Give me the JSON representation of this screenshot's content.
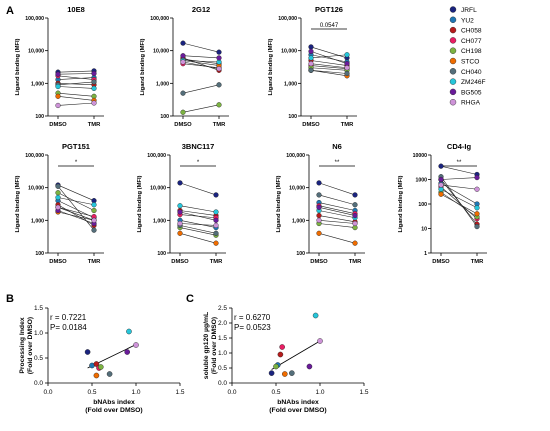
{
  "figure": {
    "panel_labels": [
      "A",
      "B",
      "C"
    ],
    "legend": [
      {
        "name": "JRFL",
        "color": "#1a237e"
      },
      {
        "name": "YU2",
        "color": "#1f77b4"
      },
      {
        "name": "CH058",
        "color": "#b71c1c"
      },
      {
        "name": "CH077",
        "color": "#e91e63"
      },
      {
        "name": "CH198",
        "color": "#7cb342"
      },
      {
        "name": "STCO",
        "color": "#ef6c00"
      },
      {
        "name": "CH040",
        "color": "#546e7a"
      },
      {
        "name": "ZM246F",
        "color": "#26c6da"
      },
      {
        "name": "BG505",
        "color": "#6a1b9a"
      },
      {
        "name": "RHGA",
        "color": "#ce93d8"
      }
    ]
  },
  "chart_data": [
    {
      "type": "line",
      "panel": "A",
      "title": "10E8",
      "ylabel": "Ligand binding (MFI)",
      "categories": [
        "DMSO",
        "TMR"
      ],
      "yscale": "log",
      "ylim": [
        100,
        100000
      ],
      "yticks": [
        "100",
        "1,000",
        "10,000",
        "100,000"
      ],
      "significance": "",
      "series": [
        {
          "name": "JRFL",
          "values": [
            2200,
            2400
          ]
        },
        {
          "name": "YU2",
          "values": [
            1300,
            1500
          ]
        },
        {
          "name": "CH058",
          "values": [
            1000,
            900
          ]
        },
        {
          "name": "CH077",
          "values": [
            1700,
            1300
          ]
        },
        {
          "name": "CH198",
          "values": [
            500,
            400
          ]
        },
        {
          "name": "STCO",
          "values": [
            400,
            300
          ]
        },
        {
          "name": "CH040",
          "values": [
            900,
            1100
          ]
        },
        {
          "name": "ZM246F",
          "values": [
            800,
            700
          ]
        },
        {
          "name": "BG505",
          "values": [
            1900,
            2000
          ]
        },
        {
          "name": "RHGA",
          "values": [
            210,
            250
          ]
        }
      ]
    },
    {
      "type": "line",
      "panel": "A",
      "title": "2G12",
      "ylabel": "Ligand binding (MFI)",
      "categories": [
        "DMSO",
        "TMR"
      ],
      "yscale": "log",
      "ylim": [
        100,
        100000
      ],
      "yticks": [
        "100",
        "1,000",
        "10,000",
        "100,000"
      ],
      "significance": "",
      "series": [
        {
          "name": "JRFL",
          "values": [
            17000,
            9000
          ]
        },
        {
          "name": "YU2",
          "values": [
            5500,
            4000
          ]
        },
        {
          "name": "CH058",
          "values": [
            6000,
            2500
          ]
        },
        {
          "name": "CH077",
          "values": [
            4000,
            3000
          ]
        },
        {
          "name": "CH198",
          "values": [
            130,
            220
          ]
        },
        {
          "name": "STCO",
          "values": [
            5000,
            3500
          ]
        },
        {
          "name": "CH040",
          "values": [
            500,
            900
          ]
        },
        {
          "name": "ZM246F",
          "values": [
            5000,
            4500
          ]
        },
        {
          "name": "BG505",
          "values": [
            7000,
            6000
          ]
        },
        {
          "name": "RHGA",
          "values": [
            4500,
            2800
          ]
        }
      ]
    },
    {
      "type": "line",
      "panel": "A",
      "title": "PGT126",
      "ylabel": "Ligand binding (MFI)",
      "categories": [
        "DMSO",
        "TMR"
      ],
      "yscale": "log",
      "ylim": [
        100,
        100000
      ],
      "yticks": [
        "100",
        "1,000",
        "10,000",
        "100,000"
      ],
      "significance": "0.0547",
      "series": [
        {
          "name": "JRFL",
          "values": [
            13000,
            6000
          ]
        },
        {
          "name": "YU2",
          "values": [
            7500,
            4500
          ]
        },
        {
          "name": "CH058",
          "values": [
            5000,
            3500
          ]
        },
        {
          "name": "CH077",
          "values": [
            3500,
            2800
          ]
        },
        {
          "name": "CH198",
          "values": [
            3000,
            2500
          ]
        },
        {
          "name": "STCO",
          "values": [
            2500,
            1700
          ]
        },
        {
          "name": "CH040",
          "values": [
            2500,
            2000
          ]
        },
        {
          "name": "ZM246F",
          "values": [
            6000,
            7500
          ]
        },
        {
          "name": "BG505",
          "values": [
            9500,
            4000
          ]
        },
        {
          "name": "RHGA",
          "values": [
            4000,
            3000
          ]
        }
      ]
    },
    {
      "type": "line",
      "panel": "A",
      "title": "PGT151",
      "ylabel": "Ligand binding (MFI)",
      "categories": [
        "DMSO",
        "TMR"
      ],
      "yscale": "log",
      "ylim": [
        100,
        100000
      ],
      "yticks": [
        "100",
        "1,000",
        "10,000",
        "100,000"
      ],
      "significance": "*",
      "series": [
        {
          "name": "JRFL",
          "values": [
            12000,
            4000
          ]
        },
        {
          "name": "YU2",
          "values": [
            4000,
            1200
          ]
        },
        {
          "name": "CH058",
          "values": [
            3000,
            700
          ]
        },
        {
          "name": "CH077",
          "values": [
            2500,
            1300
          ]
        },
        {
          "name": "CH198",
          "values": [
            7000,
            2000
          ]
        },
        {
          "name": "STCO",
          "values": [
            1800,
            1000
          ]
        },
        {
          "name": "CH040",
          "values": [
            11000,
            500
          ]
        },
        {
          "name": "ZM246F",
          "values": [
            5000,
            3000
          ]
        },
        {
          "name": "BG505",
          "values": [
            2000,
            800
          ]
        },
        {
          "name": "RHGA",
          "values": [
            2500,
            1000
          ]
        }
      ]
    },
    {
      "type": "line",
      "panel": "A",
      "title": "3BNC117",
      "ylabel": "Ligand binding (MFI)",
      "categories": [
        "DMSO",
        "TMR"
      ],
      "yscale": "log",
      "ylim": [
        100,
        100000
      ],
      "yticks": [
        "100",
        "1,000",
        "10,000",
        "100,000"
      ],
      "significance": "*",
      "series": [
        {
          "name": "JRFL",
          "values": [
            14000,
            6000
          ]
        },
        {
          "name": "YU2",
          "values": [
            1000,
            600
          ]
        },
        {
          "name": "CH058",
          "values": [
            2000,
            1400
          ]
        },
        {
          "name": "CH077",
          "values": [
            1500,
            1200
          ]
        },
        {
          "name": "CH198",
          "values": [
            600,
            350
          ]
        },
        {
          "name": "STCO",
          "values": [
            400,
            200
          ]
        },
        {
          "name": "CH040",
          "values": [
            700,
            400
          ]
        },
        {
          "name": "ZM246F",
          "values": [
            2800,
            1800
          ]
        },
        {
          "name": "BG505",
          "values": [
            1800,
            1000
          ]
        },
        {
          "name": "RHGA",
          "values": [
            800,
            700
          ]
        }
      ]
    },
    {
      "type": "line",
      "panel": "A",
      "title": "N6",
      "ylabel": "Ligand binding (MFI)",
      "categories": [
        "DMSO",
        "TMR"
      ],
      "yscale": "log",
      "ylim": [
        100,
        100000
      ],
      "yticks": [
        "100",
        "1,000",
        "10,000",
        "100,000"
      ],
      "significance": "**",
      "series": [
        {
          "name": "JRFL",
          "values": [
            14000,
            6000
          ]
        },
        {
          "name": "YU2",
          "values": [
            3500,
            2000
          ]
        },
        {
          "name": "CH058",
          "values": [
            1400,
            900
          ]
        },
        {
          "name": "CH077",
          "values": [
            2800,
            1600
          ]
        },
        {
          "name": "CH198",
          "values": [
            800,
            600
          ]
        },
        {
          "name": "STCO",
          "values": [
            400,
            200
          ]
        },
        {
          "name": "CH040",
          "values": [
            6000,
            3000
          ]
        },
        {
          "name": "ZM246F",
          "values": [
            2000,
            1200
          ]
        },
        {
          "name": "BG505",
          "values": [
            2500,
            1400
          ]
        },
        {
          "name": "RHGA",
          "values": [
            1000,
            800
          ]
        }
      ]
    },
    {
      "type": "line",
      "panel": "A",
      "title": "CD4-Ig",
      "ylabel": "Ligand binding (MFI)",
      "categories": [
        "DMSO",
        "TMR"
      ],
      "yscale": "log",
      "ylim": [
        1,
        10000
      ],
      "yticks": [
        "1",
        "10",
        "100",
        "1000",
        "10000"
      ],
      "significance": "**",
      "series": [
        {
          "name": "JRFL",
          "values": [
            3500,
            1600
          ]
        },
        {
          "name": "YU2",
          "values": [
            700,
            100
          ]
        },
        {
          "name": "CH058",
          "values": [
            1000,
            15
          ]
        },
        {
          "name": "CH077",
          "values": [
            500,
            25
          ]
        },
        {
          "name": "CH198",
          "values": [
            300,
            30
          ]
        },
        {
          "name": "STCO",
          "values": [
            250,
            40
          ]
        },
        {
          "name": "CH040",
          "values": [
            1300,
            12
          ]
        },
        {
          "name": "ZM246F",
          "values": [
            400,
            70
          ]
        },
        {
          "name": "BG505",
          "values": [
            1000,
            1200
          ]
        },
        {
          "name": "RHGA",
          "values": [
            600,
            400
          ]
        }
      ]
    },
    {
      "type": "scatter",
      "panel": "B",
      "xlabel": "bNAbs index\n(Fold over DMSO)",
      "ylabel": "Processing Index\n(Fold over DMSO)",
      "xlim": [
        0,
        1.5
      ],
      "ylim": [
        0,
        1.5
      ],
      "xticks": [
        "0.0",
        "0.5",
        "1.0",
        "1.5"
      ],
      "yticks": [
        "0.0",
        "0.5",
        "1.0",
        "1.5"
      ],
      "stats": {
        "r": "r = 0.7221",
        "p": "P= 0.0184"
      },
      "fit_line": {
        "x": [
          0.45,
          1.0
        ],
        "y": [
          0.3,
          0.77
        ]
      },
      "points": [
        {
          "name": "JRFL",
          "x": 0.45,
          "y": 0.62
        },
        {
          "name": "YU2",
          "x": 0.5,
          "y": 0.35
        },
        {
          "name": "CH058",
          "x": 0.55,
          "y": 0.38
        },
        {
          "name": "CH077",
          "x": 0.58,
          "y": 0.3
        },
        {
          "name": "CH198",
          "x": 0.6,
          "y": 0.32
        },
        {
          "name": "STCO",
          "x": 0.55,
          "y": 0.15
        },
        {
          "name": "CH040",
          "x": 0.7,
          "y": 0.18
        },
        {
          "name": "ZM246F",
          "x": 0.92,
          "y": 1.03
        },
        {
          "name": "BG505",
          "x": 0.9,
          "y": 0.62
        },
        {
          "name": "RHGA",
          "x": 1.0,
          "y": 0.76
        }
      ]
    },
    {
      "type": "scatter",
      "panel": "C",
      "xlabel": "bNAbs index\n(Fold over DMSO)",
      "ylabel": "soluble gp120 µg/mL\n(Fold over DMSO)",
      "xlim": [
        0,
        1.5
      ],
      "ylim": [
        0,
        2.5
      ],
      "xticks": [
        "0.0",
        "0.5",
        "1.0",
        "1.5"
      ],
      "yticks": [
        "0.0",
        "0.5",
        "1.0",
        "1.5",
        "2.0",
        "2.5"
      ],
      "stats": {
        "r": "r = 0.6270",
        "p": "P= 0.0523"
      },
      "fit_line": {
        "x": [
          0.45,
          1.0
        ],
        "y": [
          0.45,
          1.4
        ]
      },
      "points": [
        {
          "name": "JRFL",
          "x": 0.45,
          "y": 0.33
        },
        {
          "name": "YU2",
          "x": 0.52,
          "y": 0.6
        },
        {
          "name": "CH058",
          "x": 0.55,
          "y": 0.95
        },
        {
          "name": "CH077",
          "x": 0.57,
          "y": 1.2
        },
        {
          "name": "CH198",
          "x": 0.5,
          "y": 0.55
        },
        {
          "name": "STCO",
          "x": 0.6,
          "y": 0.3
        },
        {
          "name": "CH040",
          "x": 0.68,
          "y": 0.33
        },
        {
          "name": "ZM246F",
          "x": 0.95,
          "y": 2.25
        },
        {
          "name": "BG505",
          "x": 0.88,
          "y": 0.55
        },
        {
          "name": "RHGA",
          "x": 1.0,
          "y": 1.4
        }
      ]
    }
  ]
}
